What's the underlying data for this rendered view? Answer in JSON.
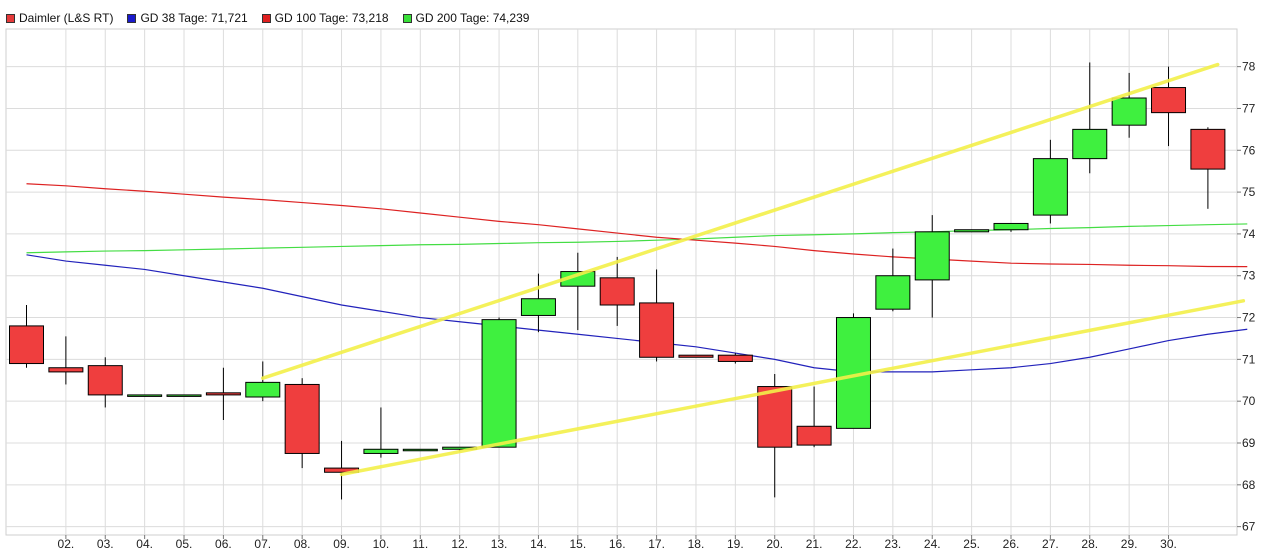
{
  "legend": [
    {
      "label": "Daimler (L&S RT)",
      "color": "#e63a3a"
    },
    {
      "label": "GD 38 Tage: 71,721",
      "color": "#1a1acc"
    },
    {
      "label": "GD 100 Tage: 73,218",
      "color": "#e02020"
    },
    {
      "label": "GD 200 Tage: 74,239",
      "color": "#38e038"
    }
  ],
  "colors": {
    "up": "#3ff03f",
    "down": "#ef3e3e",
    "wick": "#000000",
    "gd38": "#2222bb",
    "gd100": "#dd2222",
    "gd200": "#44dd44",
    "trend": "#f3f04a",
    "grid": "#dcdcdc"
  },
  "chart_data": {
    "type": "candlestick",
    "ylim": [
      66.8,
      78.9
    ],
    "y_ticks": [
      67,
      68,
      69,
      70,
      71,
      72,
      73,
      74,
      75,
      76,
      77,
      78
    ],
    "x_ticks": [
      "02.",
      "03.",
      "04.",
      "05.",
      "06.",
      "07.",
      "08.",
      "09.",
      "10.",
      "11.",
      "12.",
      "13.",
      "14.",
      "15.",
      "16.",
      "17.",
      "18.",
      "19.",
      "20.",
      "21.",
      "22.",
      "23.",
      "24.",
      "25.",
      "26.",
      "27.",
      "28.",
      "29.",
      "30."
    ],
    "candles": [
      {
        "o": 71.8,
        "h": 72.3,
        "l": 70.8,
        "c": 70.9
      },
      {
        "o": 70.8,
        "h": 71.55,
        "l": 70.4,
        "c": 70.7
      },
      {
        "o": 70.85,
        "h": 71.05,
        "l": 69.85,
        "c": 70.15
      },
      {
        "o": 70.15,
        "h": 70.15,
        "l": 70.15,
        "c": 70.15
      },
      {
        "o": 70.15,
        "h": 70.15,
        "l": 70.15,
        "c": 70.15
      },
      {
        "o": 70.2,
        "h": 70.8,
        "l": 69.55,
        "c": 70.15
      },
      {
        "o": 70.1,
        "h": 70.95,
        "l": 70.0,
        "c": 70.45
      },
      {
        "o": 70.4,
        "h": 70.55,
        "l": 68.4,
        "c": 68.75
      },
      {
        "o": 68.4,
        "h": 69.05,
        "l": 67.65,
        "c": 68.3
      },
      {
        "o": 68.75,
        "h": 69.85,
        "l": 68.65,
        "c": 68.85
      },
      {
        "o": 68.85,
        "h": 68.85,
        "l": 68.85,
        "c": 68.85
      },
      {
        "o": 68.85,
        "h": 68.9,
        "l": 68.8,
        "c": 68.9
      },
      {
        "o": 68.9,
        "h": 72.0,
        "l": 68.9,
        "c": 71.95
      },
      {
        "o": 72.05,
        "h": 73.05,
        "l": 71.65,
        "c": 72.45
      },
      {
        "o": 72.75,
        "h": 73.55,
        "l": 71.7,
        "c": 73.1
      },
      {
        "o": 72.95,
        "h": 73.45,
        "l": 71.8,
        "c": 72.3
      },
      {
        "o": 72.35,
        "h": 73.15,
        "l": 70.95,
        "c": 71.05
      },
      {
        "o": 71.1,
        "h": 71.1,
        "l": 71.05,
        "c": 71.05
      },
      {
        "o": 71.1,
        "h": 71.15,
        "l": 70.9,
        "c": 70.95
      },
      {
        "o": 70.35,
        "h": 70.65,
        "l": 67.7,
        "c": 68.9
      },
      {
        "o": 69.4,
        "h": 70.35,
        "l": 68.9,
        "c": 68.95
      },
      {
        "o": 69.35,
        "h": 72.1,
        "l": 69.35,
        "c": 72.0
      },
      {
        "o": 72.2,
        "h": 73.65,
        "l": 72.15,
        "c": 73.0
      },
      {
        "o": 72.9,
        "h": 74.45,
        "l": 72.0,
        "c": 74.05
      },
      {
        "o": 74.05,
        "h": 74.1,
        "l": 74.05,
        "c": 74.1
      },
      {
        "o": 74.1,
        "h": 74.25,
        "l": 74.05,
        "c": 74.25
      },
      {
        "o": 74.45,
        "h": 76.25,
        "l": 74.25,
        "c": 75.8
      },
      {
        "o": 75.8,
        "h": 78.1,
        "l": 75.45,
        "c": 76.5
      },
      {
        "o": 76.6,
        "h": 77.85,
        "l": 76.3,
        "c": 77.25
      },
      {
        "o": 77.5,
        "h": 78.0,
        "l": 76.1,
        "c": 76.9
      },
      {
        "o": 76.5,
        "h": 76.55,
        "l": 74.6,
        "c": 75.55
      }
    ],
    "gd38": [
      73.5,
      73.35,
      73.25,
      73.15,
      73.0,
      72.85,
      72.7,
      72.5,
      72.3,
      72.15,
      72.0,
      71.9,
      71.8,
      71.7,
      71.6,
      71.5,
      71.4,
      71.3,
      71.15,
      71.0,
      70.8,
      70.7,
      70.7,
      70.7,
      70.75,
      70.8,
      70.9,
      71.05,
      71.25,
      71.45,
      71.6,
      71.72
    ],
    "gd100": [
      75.2,
      75.15,
      75.08,
      75.02,
      74.95,
      74.88,
      74.82,
      74.75,
      74.68,
      74.6,
      74.5,
      74.4,
      74.3,
      74.22,
      74.12,
      74.02,
      73.92,
      73.85,
      73.78,
      73.7,
      73.6,
      73.52,
      73.45,
      73.4,
      73.35,
      73.3,
      73.28,
      73.27,
      73.25,
      73.24,
      73.22,
      73.218
    ],
    "gd200": [
      73.55,
      73.57,
      73.59,
      73.6,
      73.62,
      73.64,
      73.66,
      73.68,
      73.7,
      73.72,
      73.74,
      73.75,
      73.77,
      73.79,
      73.8,
      73.82,
      73.85,
      73.88,
      73.92,
      73.96,
      73.98,
      74.0,
      74.03,
      74.05,
      74.08,
      74.1,
      74.13,
      74.15,
      74.18,
      74.2,
      74.22,
      74.239
    ],
    "trendlines": [
      {
        "x1": 6.0,
        "y1": 70.55,
        "x2": 30.25,
        "y2": 78.05
      },
      {
        "x1": 8.0,
        "y1": 68.25,
        "x2": 30.9,
        "y2": 72.4
      }
    ]
  }
}
